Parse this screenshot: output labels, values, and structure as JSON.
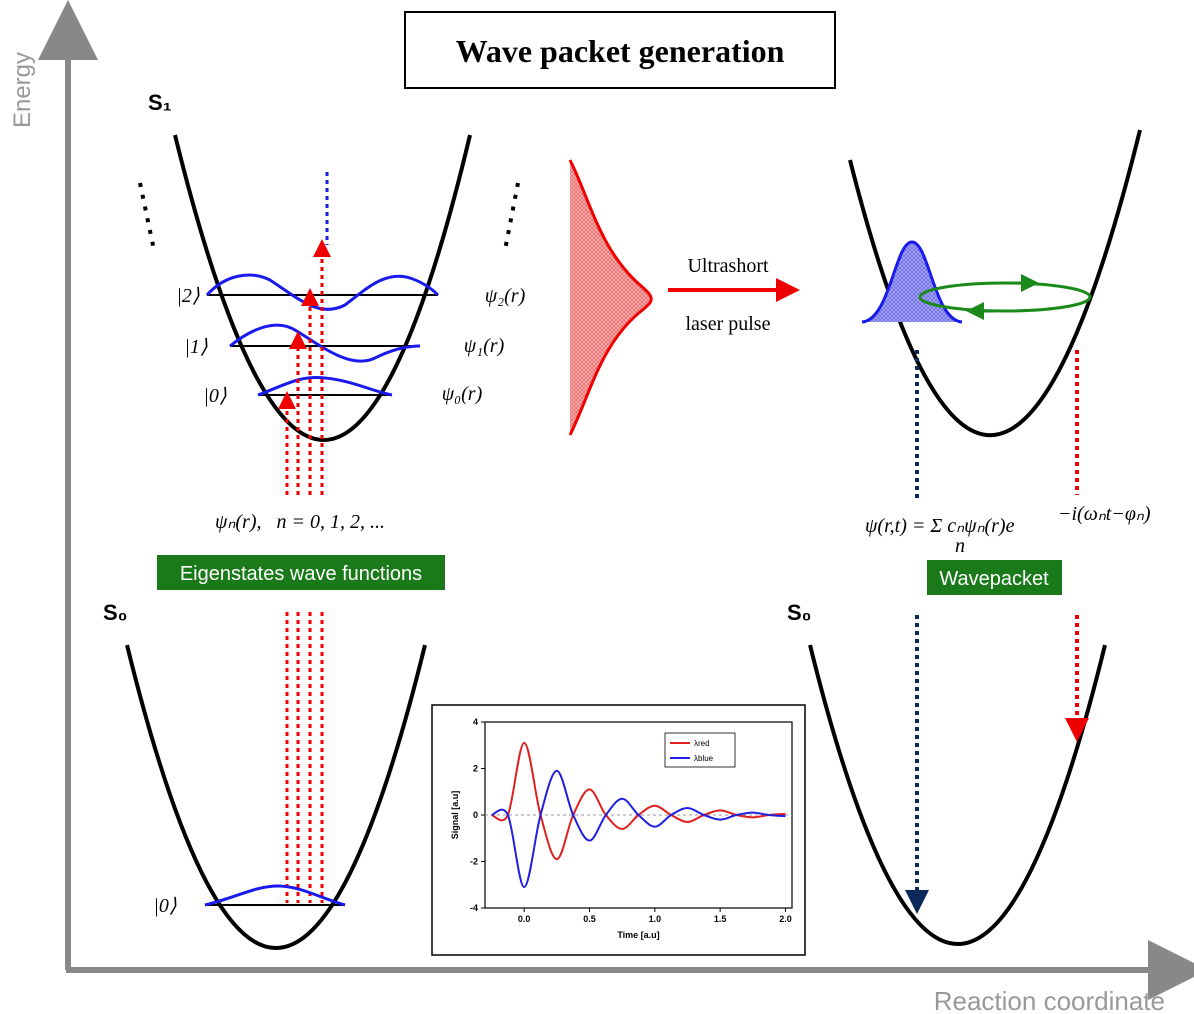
{
  "title": "Wave packet generation",
  "axes": {
    "y_label": "Energy",
    "x_label": "Reaction coordinate"
  },
  "states": {
    "s1": "S₁",
    "s0_left": "S₀",
    "s0_right": "S₀"
  },
  "levels": [
    {
      "ket": "|2⟩",
      "psi": "ψ₂(r)"
    },
    {
      "ket": "|1⟩",
      "psi": "ψ₁(r)"
    },
    {
      "ket": "|0⟩",
      "psi": "ψ₀(r)"
    }
  ],
  "eigen_expression": "ψₙ(r),   n = 0, 1, 2, ...",
  "eigen_box": "Eigenstates wave functions",
  "pulse": {
    "line1": "Ultrashort",
    "line2": "laser pulse"
  },
  "wavepacket_formula": {
    "main": "ψ(r,t) = Σ cₙψₙ(r)e",
    "sum_index": "n",
    "exponent": "−i(ωₙt−φₙ)"
  },
  "wavepacket_box": "Wavepacket",
  "ground_ket": "|0⟩",
  "inset_chart": {
    "type": "line",
    "x_label": "Time [a.u]",
    "y_label": "Signal [a.u]",
    "x": [
      -0.25,
      -0.125,
      0,
      0.125,
      0.25,
      0.375,
      0.5,
      0.625,
      0.75,
      0.875,
      1.0,
      1.125,
      1.25,
      1.375,
      1.5,
      1.625,
      1.75,
      1.875,
      2.0
    ],
    "series": [
      {
        "name": "λred",
        "color": "#e02020",
        "values": [
          0,
          0,
          3.1,
          0,
          -1.9,
          0,
          1.1,
          0,
          -0.6,
          0,
          0.4,
          0,
          -0.3,
          0,
          0.2,
          0,
          -0.1,
          0,
          0.05
        ]
      },
      {
        "name": "λblue",
        "color": "#2020e0",
        "values": [
          0,
          0,
          -3.1,
          0,
          1.9,
          0,
          -1.1,
          0,
          0.7,
          0,
          -0.5,
          0,
          0.3,
          0,
          -0.2,
          0,
          0.1,
          0,
          -0.05
        ]
      }
    ],
    "xlim": [
      -0.3,
      2.05
    ],
    "ylim": [
      -4,
      4
    ],
    "xticks": [
      {
        "value": 0,
        "label": "0.0"
      },
      0.5,
      {
        "value": 1,
        "label": "1.0"
      },
      1.5,
      {
        "value": 2,
        "label": "2.0"
      }
    ],
    "yticks": [
      -4,
      -2,
      0,
      2,
      4
    ],
    "legend": "upper right"
  }
}
